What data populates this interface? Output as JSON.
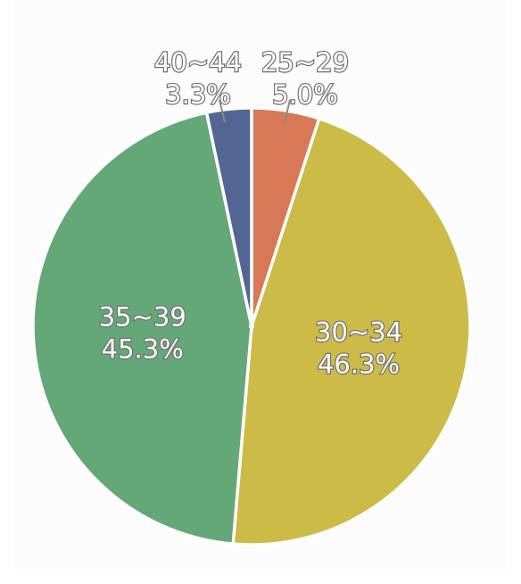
{
  "chart_data": {
    "type": "pie",
    "slices": [
      {
        "label": "25~29",
        "percent_label": "5.0%",
        "value": 5.0,
        "color": "#d97856"
      },
      {
        "label": "30~34",
        "percent_label": "46.3%",
        "value": 46.3,
        "color": "#ccbb47"
      },
      {
        "label": "35~39",
        "percent_label": "45.3%",
        "value": 45.3,
        "color": "#64a878"
      },
      {
        "label": "40~44",
        "percent_label": "3.3%",
        "value": 3.3,
        "color": "#536693"
      }
    ],
    "start_angle_deg": 0,
    "direction": "clockwise",
    "slice_border_color": "#ffffff"
  }
}
